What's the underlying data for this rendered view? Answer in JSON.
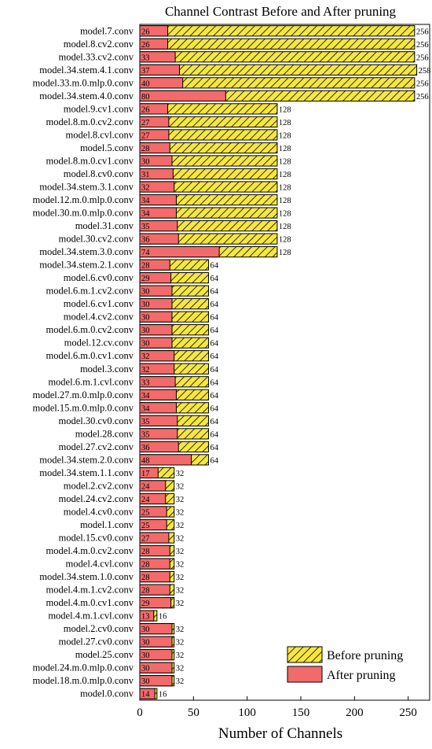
{
  "chart_data": {
    "type": "bar",
    "orientation": "horizontal",
    "title": "Channel Contrast Before and After pruning",
    "xlabel": "Number of Channels",
    "ylabel": "",
    "xlim": [
      0,
      270
    ],
    "xticks": [
      0,
      50,
      100,
      150,
      200,
      250
    ],
    "grid": false,
    "legend_position": "bottom-right",
    "categories": [
      "model.7.conv",
      "model.8.cv2.conv",
      "model.33.cv2.conv",
      "model.34.stem.4.1.conv",
      "model.33.m.0.mlp.0.conv",
      "model.34.stem.4.0.conv",
      "model.9.cv1.conv",
      "model.8.m.0.cv2.conv",
      "model.8.cvl.conv",
      "model.5.conv",
      "model.8.m.0.cv1.conv",
      "model.8.cv0.conv",
      "model.34.stem.3.1.conv",
      "model.12.m.0.mlp.0.conv",
      "model.30.m.0.mlp.0.conv",
      "model.31.conv",
      "model.30.cv2.conv",
      "model.34.stem.3.0.conv",
      "model.34.stem.2.1.conv",
      "model.6.cv0.conv",
      "model.6.m.1.cv2.conv",
      "model.6.cv1.conv",
      "model.4.cv2.conv",
      "model.6.m.0.cv2.conv",
      "model.12.cv.conv",
      "model.6.m.0.cv1.conv",
      "model.3.conv",
      "model.6.m.1.cvl.conv",
      "model.27.m.0.mlp.0.conv",
      "model.15.m.0.mlp.0.conv",
      "model.30.cv0.conv",
      "model.28.conv",
      "model.27.cv2.conv",
      "model.34.stem.2.0.conv",
      "model.34.stem.1.1.conv",
      "model.2.cv2.conv",
      "model.24.cv2.conv",
      "model.4.cv0.conv",
      "model.1.conv",
      "model.15.cv0.conv",
      "model.4.m.0.cv2.conv",
      "model.4.cvl.conv",
      "model.34.stem.1.0.conv",
      "model.4.m.1.cv2.conv",
      "model.4.m.0.cv1.conv",
      "model.4.m.1.cvl.conv",
      "model.2.cv0.conv",
      "model.27.cv0.conv",
      "model.25.conv",
      "model.24.m.0.mlp.0.conv",
      "model.18.m.0.mlp.0.conv",
      "model.0.conv"
    ],
    "series": [
      {
        "name": "Before pruning",
        "color": "#f5e642",
        "pattern": "diagonal-hatch",
        "values": [
          256,
          256,
          256,
          258,
          256,
          256,
          128,
          128,
          128,
          128,
          128,
          128,
          128,
          128,
          128,
          128,
          128,
          128,
          64,
          64,
          64,
          64,
          64,
          64,
          64,
          64,
          64,
          64,
          64,
          64,
          64,
          64,
          64,
          64,
          32,
          32,
          32,
          32,
          32,
          32,
          32,
          32,
          32,
          32,
          32,
          16,
          32,
          32,
          32,
          32,
          32,
          16
        ]
      },
      {
        "name": "After pruning",
        "color": "#f26a6a",
        "values": [
          26,
          26,
          33,
          37,
          40,
          80,
          26,
          27,
          27,
          28,
          30,
          31,
          32,
          34,
          34,
          35,
          36,
          74,
          28,
          29,
          30,
          30,
          30,
          30,
          30,
          32,
          32,
          33,
          34,
          34,
          35,
          35,
          36,
          48,
          17,
          24,
          24,
          25,
          25,
          27,
          28,
          28,
          28,
          28,
          29,
          13,
          30,
          30,
          30,
          30,
          30,
          14
        ]
      }
    ]
  }
}
